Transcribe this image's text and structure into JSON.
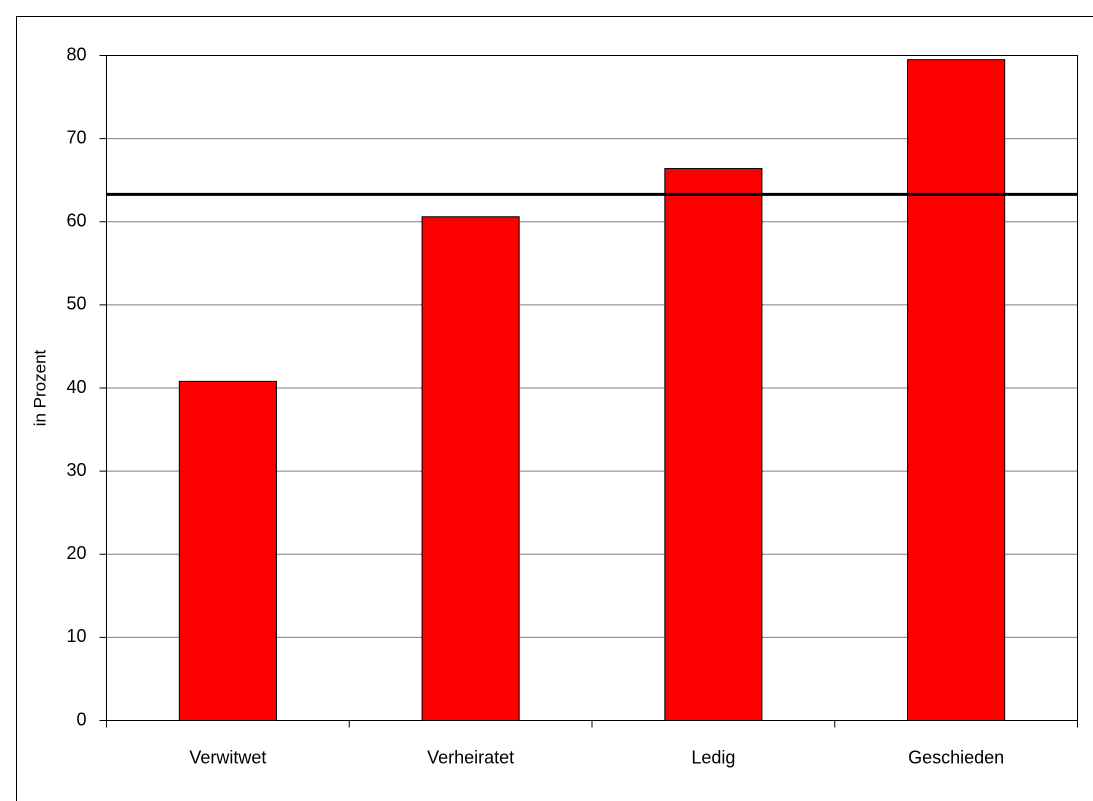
{
  "chart_data": {
    "type": "bar",
    "y_label": "in Prozent",
    "categories": [
      "Verwitwet",
      "Verheiratet",
      "Ledig",
      "Geschieden"
    ],
    "values": [
      40.8,
      60.6,
      66.4,
      79.5
    ],
    "color": "#ff0000",
    "reference_value": 63.3,
    "ylim": [
      0,
      80
    ],
    "yticks": [
      0,
      10,
      20,
      30,
      40,
      50,
      60,
      70,
      80
    ],
    "grid": true
  }
}
